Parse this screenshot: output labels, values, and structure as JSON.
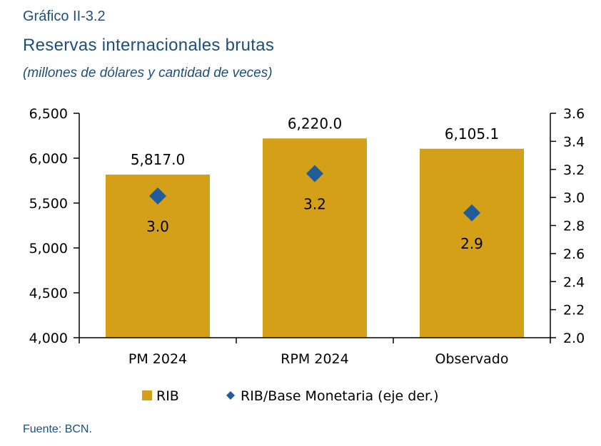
{
  "figure_label": "Gráfico II-3.2",
  "source": "Fuente: BCN.",
  "colors": {
    "bar": "#d4a017",
    "marker": "#1f5c99",
    "text_title": "#1f4e79"
  },
  "chart_data": {
    "type": "bar",
    "title": "Reservas internacionales brutas",
    "subtitle": "(millones de dólares y cantidad de veces)",
    "categories": [
      "PM 2024",
      "RPM 2024",
      "Observado"
    ],
    "series": [
      {
        "name": "RIB",
        "type": "bar",
        "axis": "left",
        "values": [
          5817.0,
          6220.0,
          6105.1
        ],
        "labels": [
          "5,817.0",
          "6,220.0",
          "6,105.1"
        ]
      },
      {
        "name": "RIB/Base Monetaria (eje der.)",
        "type": "scatter",
        "axis": "right",
        "marker": "diamond",
        "values": [
          3.01,
          3.17,
          2.89
        ],
        "labels": [
          "3.0",
          "3.2",
          "2.9"
        ]
      }
    ],
    "left_axis": {
      "ylim": [
        4000,
        6500
      ],
      "ticks": [
        "4,000",
        "4,500",
        "5,000",
        "5,500",
        "6,000",
        "6,500"
      ],
      "tick_values": [
        4000,
        4500,
        5000,
        5500,
        6000,
        6500
      ]
    },
    "right_axis": {
      "ylim": [
        2.0,
        3.6
      ],
      "ticks": [
        "2.0",
        "2.2",
        "2.4",
        "2.6",
        "2.8",
        "3.0",
        "3.2",
        "3.4",
        "3.6"
      ],
      "tick_values": [
        2.0,
        2.2,
        2.4,
        2.6,
        2.8,
        3.0,
        3.2,
        3.4,
        3.6
      ]
    },
    "grid": false,
    "legend_position": "bottom"
  }
}
